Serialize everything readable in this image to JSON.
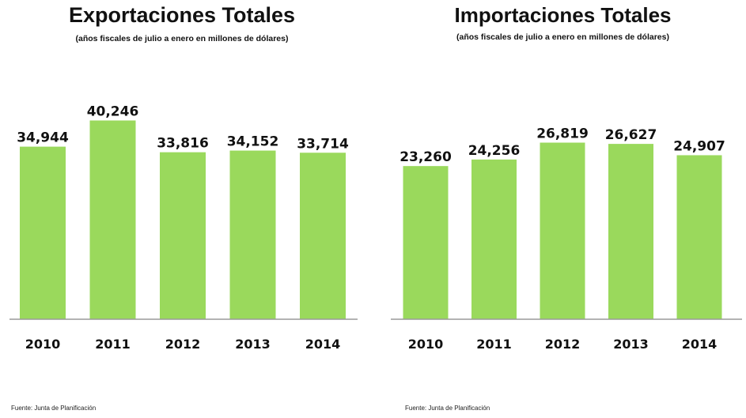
{
  "chart_data": [
    {
      "type": "bar",
      "title": "Exportaciones Totales",
      "subtitle": "(años fiscales de julio a enero en millones de dólares)",
      "categories": [
        "2010",
        "2011",
        "2012",
        "2013",
        "2014"
      ],
      "values": [
        34944,
        40246,
        33816,
        34152,
        33714
      ],
      "value_labels": [
        "34,944",
        "40,246",
        "33,816",
        "34,152",
        "33,714"
      ],
      "xlabel": "",
      "ylabel": "",
      "ylim": [
        0,
        44000
      ],
      "bar_color": "#9ad95c",
      "source": "Fuente: Junta de Planificación"
    },
    {
      "type": "bar",
      "title": "Importaciones Totales",
      "subtitle": "(años fiscales de julio a enero en millones de dólares)",
      "categories": [
        "2010",
        "2011",
        "2012",
        "2013",
        "2014"
      ],
      "values": [
        23260,
        24256,
        26819,
        26627,
        24907
      ],
      "value_labels": [
        "23,260",
        "24,256",
        "26,819",
        "26,627",
        "24,907"
      ],
      "xlabel": "",
      "ylabel": "",
      "ylim": [
        0,
        33000
      ],
      "bar_color": "#9ad95c",
      "source": "Fuente: Junta de Planificación"
    }
  ]
}
